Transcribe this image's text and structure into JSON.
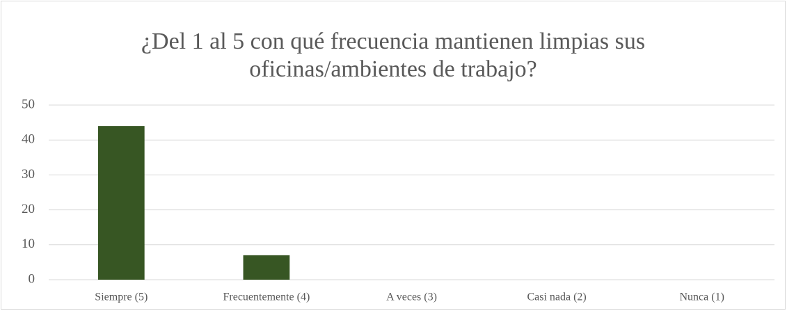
{
  "chart_data": {
    "type": "bar",
    "title": "¿Del 1 al 5 con qué frecuencia mantienen limpias sus oficinas/ambientes de trabajo?",
    "categories": [
      "Siempre (5)",
      "Frecuentemente (4)",
      "A veces (3)",
      "Casi nada (2)",
      "Nunca (1)"
    ],
    "values": [
      44,
      7,
      0,
      0,
      0
    ],
    "color": "#375623",
    "ylim": [
      0,
      50
    ],
    "yticks": [
      0,
      10,
      20,
      30,
      40,
      50
    ],
    "grid": true
  }
}
